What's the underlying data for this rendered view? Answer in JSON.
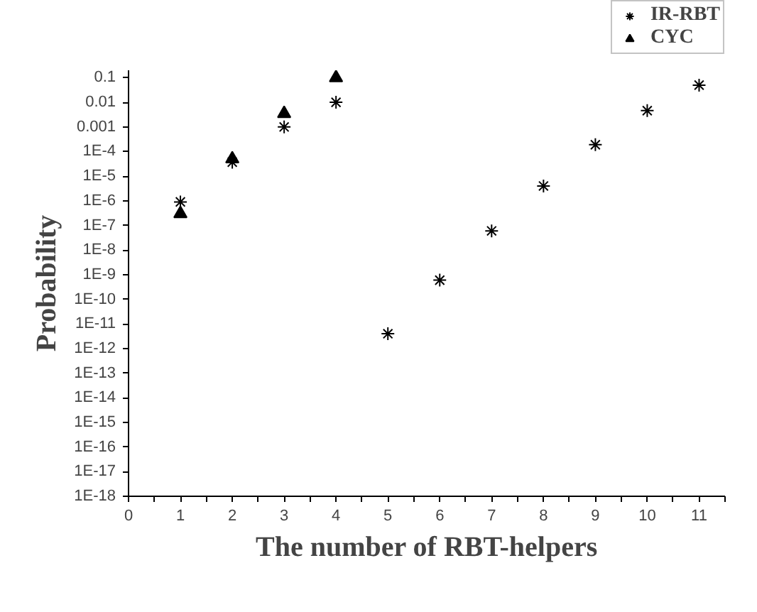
{
  "chart_data": {
    "type": "scatter",
    "xlabel": "The number of RBT-helpers",
    "ylabel": "Probability",
    "log": "y",
    "grid": false,
    "legend": "top right",
    "xlim": [
      0,
      11.5
    ],
    "xticks": [
      0,
      1,
      2,
      3,
      4,
      5,
      6,
      7,
      8,
      9,
      10,
      11
    ],
    "ylim": [
      1e-18,
      0.2
    ],
    "yticks": [
      {
        "value": 0.1,
        "label": "0.1"
      },
      {
        "value": 0.01,
        "label": "0.01"
      },
      {
        "value": 0.001,
        "label": "0.001"
      },
      {
        "value": 0.0001,
        "label": "1E-4"
      },
      {
        "value": 1e-05,
        "label": "1E-5"
      },
      {
        "value": 1e-06,
        "label": "1E-6"
      },
      {
        "value": 1e-07,
        "label": "1E-7"
      },
      {
        "value": 1e-08,
        "label": "1E-8"
      },
      {
        "value": 1e-09,
        "label": "1E-9"
      },
      {
        "value": 1e-10,
        "label": "1E-10"
      },
      {
        "value": 1e-11,
        "label": "1E-11"
      },
      {
        "value": 1e-12,
        "label": "1E-12"
      },
      {
        "value": 1e-13,
        "label": "1E-13"
      },
      {
        "value": 1e-14,
        "label": "1E-14"
      },
      {
        "value": 1e-15,
        "label": "1E-15"
      },
      {
        "value": 1e-16,
        "label": "1E-16"
      },
      {
        "value": 1e-17,
        "label": "1E-17"
      },
      {
        "value": 1e-18,
        "label": "1E-18"
      }
    ],
    "series": [
      {
        "name": "IR-RBT",
        "color": "#000000",
        "marker": "cross",
        "x": [
          1,
          2,
          3,
          4,
          5,
          6,
          7,
          8,
          9,
          10,
          11
        ],
        "values": [
          9e-07,
          3.7e-05,
          0.001,
          0.01,
          4e-12,
          6e-10,
          6e-08,
          4e-06,
          0.00019,
          0.0046,
          0.05
        ]
      },
      {
        "name": "CYC",
        "color": "#000000",
        "marker": "triangle",
        "x": [
          1,
          2,
          3,
          4
        ],
        "values": [
          3e-07,
          5e-05,
          0.0035,
          0.1
        ]
      }
    ]
  }
}
